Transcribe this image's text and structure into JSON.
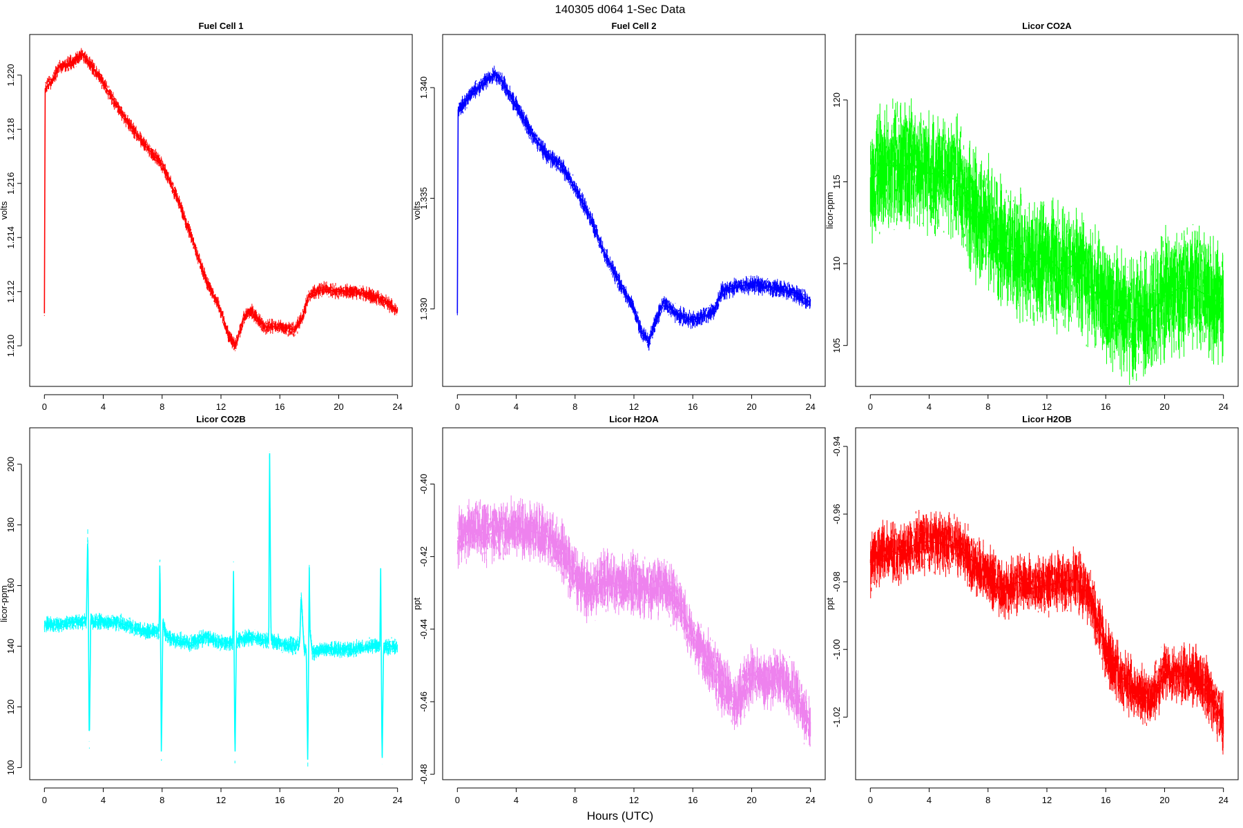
{
  "figure": {
    "title": "140305   d064   1-Sec Data",
    "xlabel": "Hours (UTC)"
  },
  "chart_data": [
    {
      "type": "line",
      "title": "Fuel Cell 1",
      "ylabel": "volts",
      "color": "#ff0000",
      "xlim": [
        -1,
        25
      ],
      "ylim": [
        1.2085,
        1.2215
      ],
      "xticks": [
        0,
        4,
        8,
        12,
        16,
        20,
        24
      ],
      "yticks": [
        1.21,
        1.212,
        1.214,
        1.216,
        1.218,
        1.22
      ],
      "ytick_labels": [
        "1.210",
        "1.212",
        "1.214",
        "1.216",
        "1.218",
        "1.220"
      ],
      "x": [
        0,
        0.05,
        0.5,
        1,
        2,
        2.5,
        3,
        4,
        5,
        6,
        7,
        8,
        9,
        10,
        11,
        12,
        12.5,
        13,
        13.5,
        14,
        15,
        16,
        17,
        17.5,
        18,
        19,
        20,
        21,
        22,
        23,
        24
      ],
      "y": [
        1.2112,
        1.2195,
        1.2198,
        1.2203,
        1.2205,
        1.2208,
        1.2205,
        1.2197,
        1.2188,
        1.218,
        1.2173,
        1.2167,
        1.2155,
        1.214,
        1.2124,
        1.2113,
        1.2104,
        1.21,
        1.211,
        1.2113,
        1.2107,
        1.2107,
        1.2106,
        1.211,
        1.2119,
        1.2121,
        1.212,
        1.212,
        1.2119,
        1.2117,
        1.2113
      ],
      "noise": 0.0004
    },
    {
      "type": "line",
      "title": "Fuel Cell 2",
      "ylabel": "volts",
      "color": "#0000ff",
      "xlim": [
        -1,
        25
      ],
      "ylim": [
        1.3265,
        1.3424
      ],
      "xticks": [
        0,
        4,
        8,
        12,
        16,
        20,
        24
      ],
      "yticks": [
        1.33,
        1.335,
        1.34
      ],
      "ytick_labels": [
        "1.330",
        "1.335",
        "1.340"
      ],
      "x": [
        0,
        0.05,
        0.5,
        1,
        2,
        2.5,
        3,
        4,
        5,
        6,
        7,
        8,
        9,
        10,
        11,
        12,
        12.5,
        13,
        13.5,
        14,
        15,
        16,
        17,
        17.5,
        18,
        19,
        20,
        21,
        22,
        23,
        24
      ],
      "y": [
        1.3298,
        1.339,
        1.3393,
        1.3398,
        1.3403,
        1.3406,
        1.3403,
        1.3392,
        1.338,
        1.337,
        1.3365,
        1.3355,
        1.3342,
        1.3325,
        1.3312,
        1.33,
        1.329,
        1.3285,
        1.3295,
        1.3303,
        1.3297,
        1.3295,
        1.3297,
        1.33,
        1.3308,
        1.331,
        1.3311,
        1.331,
        1.3309,
        1.3307,
        1.3303
      ],
      "noise": 0.0006
    },
    {
      "type": "line",
      "title": "Licor CO2A",
      "ylabel": "licor-ppm",
      "color": "#00ff00",
      "xlim": [
        -1,
        25
      ],
      "ylim": [
        102.5,
        124
      ],
      "xticks": [
        0,
        4,
        8,
        12,
        16,
        20,
        24
      ],
      "yticks": [
        105,
        110,
        115,
        120
      ],
      "ytick_labels": [
        "105",
        "110",
        "115",
        "120"
      ],
      "x": [
        0,
        1,
        2,
        3,
        4,
        5,
        6,
        7,
        8,
        9,
        10,
        11,
        12,
        13,
        14,
        15,
        16,
        17,
        18,
        19,
        20,
        21,
        22,
        23,
        24
      ],
      "y": [
        115,
        116,
        116,
        116,
        115.5,
        115.5,
        115,
        113,
        112.5,
        111,
        110.8,
        110,
        110.5,
        109.5,
        110,
        108.5,
        107.5,
        107,
        106.5,
        107,
        108,
        108.5,
        108.5,
        108,
        107.5
      ],
      "noise": 5.5
    },
    {
      "type": "line",
      "title": "Licor CO2B",
      "ylabel": "licor-ppm",
      "color": "#00ffff",
      "xlim": [
        -1,
        25
      ],
      "ylim": [
        96,
        212
      ],
      "xticks": [
        0,
        4,
        8,
        12,
        16,
        20,
        24
      ],
      "yticks": [
        100,
        120,
        140,
        160,
        180,
        200
      ],
      "ytick_labels": [
        "100",
        "120",
        "140",
        "160",
        "180",
        "200"
      ],
      "x": [
        0,
        1,
        2,
        2.85,
        2.95,
        3.05,
        3.15,
        3.25,
        4,
        5,
        6,
        7,
        7.8,
        7.85,
        7.95,
        8.05,
        8.15,
        8.3,
        9,
        10,
        11,
        12,
        12.8,
        12.85,
        12.95,
        13.05,
        13.1,
        13.2,
        14,
        15,
        15.25,
        15.3,
        15.4,
        16,
        17,
        17.35,
        17.45,
        17.65,
        17.8,
        17.9,
        18.0,
        18.05,
        18.2,
        19,
        20,
        21,
        22,
        22.8,
        22.85,
        22.95,
        23.05,
        23.1,
        23.2,
        24
      ],
      "y": [
        147,
        147,
        148,
        148,
        179,
        105,
        150,
        148,
        148,
        148,
        146,
        145,
        145,
        172,
        103,
        148,
        146,
        143,
        142,
        141,
        143,
        141,
        141,
        167,
        101,
        144,
        141,
        142,
        143,
        142,
        142,
        208,
        142,
        141,
        140,
        141,
        157,
        139,
        139,
        100,
        166,
        145,
        138,
        139,
        139,
        139,
        140,
        140,
        168,
        99,
        141,
        139,
        140,
        140
      ],
      "noise": 4
    },
    {
      "type": "line",
      "title": "Licor H2OA",
      "ylabel": "ppt",
      "color": "#ee82ee",
      "xlim": [
        -1,
        25
      ],
      "ylim": [
        -0.4815,
        -0.3845
      ],
      "xticks": [
        0,
        4,
        8,
        12,
        16,
        20,
        24
      ],
      "yticks": [
        -0.48,
        -0.46,
        -0.44,
        -0.42,
        -0.4
      ],
      "ytick_labels": [
        "-0.48",
        "-0.46",
        "-0.44",
        "-0.42",
        "-0.40"
      ],
      "x": [
        0,
        1,
        2,
        3,
        4,
        5,
        6,
        7,
        8,
        9,
        10,
        11,
        12,
        13,
        14,
        15,
        16,
        17,
        18,
        19,
        20,
        21,
        22,
        23,
        24
      ],
      "y": [
        -0.415,
        -0.412,
        -0.414,
        -0.413,
        -0.412,
        -0.413,
        -0.414,
        -0.418,
        -0.425,
        -0.43,
        -0.426,
        -0.428,
        -0.427,
        -0.429,
        -0.428,
        -0.432,
        -0.442,
        -0.448,
        -0.455,
        -0.46,
        -0.452,
        -0.455,
        -0.453,
        -0.458,
        -0.466
      ],
      "noise": 0.012
    },
    {
      "type": "line",
      "title": "Licor H2OB",
      "ylabel": "ppt",
      "color": "#ff0000",
      "xlim": [
        -1,
        25
      ],
      "ylim": [
        -1.0385,
        -0.9345
      ],
      "xticks": [
        0,
        4,
        8,
        12,
        16,
        20,
        24
      ],
      "yticks": [
        -1.02,
        -1.0,
        -0.98,
        -0.96,
        -0.94
      ],
      "ytick_labels": [
        "-1.02",
        "-1.00",
        "-0.98",
        "-0.96",
        "-0.94"
      ],
      "x": [
        0,
        1,
        2,
        3,
        4,
        5,
        6,
        7,
        8,
        9,
        10,
        11,
        12,
        13,
        14,
        15,
        16,
        17,
        18,
        19,
        20,
        21,
        22,
        23,
        24
      ],
      "y": [
        -0.975,
        -0.97,
        -0.972,
        -0.969,
        -0.968,
        -0.969,
        -0.97,
        -0.974,
        -0.978,
        -0.983,
        -0.98,
        -0.982,
        -0.981,
        -0.98,
        -0.979,
        -0.985,
        -1.0,
        -1.008,
        -1.012,
        -1.015,
        -1.007,
        -1.008,
        -1.007,
        -1.012,
        -1.022
      ],
      "noise": 0.013
    }
  ]
}
